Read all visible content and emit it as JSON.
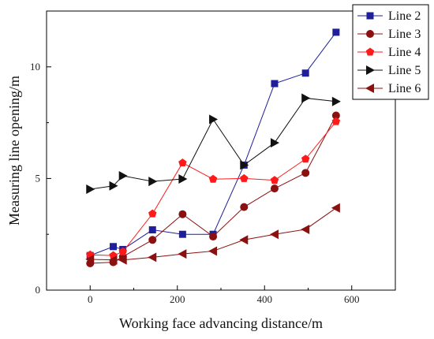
{
  "chart_data": {
    "type": "line",
    "title": "",
    "xlabel": "Working face advancing distance/m",
    "ylabel": "Measuring line opening/m",
    "xlim": [
      -100,
      700
    ],
    "ylim": [
      0,
      12.5
    ],
    "xticks": [
      0,
      200,
      400,
      600
    ],
    "yticks": [
      0,
      5,
      10
    ],
    "grid": false,
    "legend_position": "top-right",
    "series": [
      {
        "name": "Line 2",
        "color": "#1f1f9a",
        "marker": "square",
        "x": [
          0,
          53,
          75,
          143,
          212,
          282,
          353,
          423,
          494,
          564
        ],
        "y": [
          1.55,
          1.95,
          1.82,
          2.7,
          2.5,
          2.5,
          5.6,
          9.25,
          9.72,
          11.55
        ]
      },
      {
        "name": "Line 3",
        "color": "#8b1010",
        "marker": "circle",
        "x": [
          0,
          53,
          75,
          143,
          212,
          282,
          353,
          423,
          494,
          564
        ],
        "y": [
          1.2,
          1.25,
          1.5,
          2.25,
          3.4,
          2.4,
          3.72,
          4.55,
          5.25,
          7.82
        ]
      },
      {
        "name": "Line 4",
        "color": "#ff1a1a",
        "marker": "pentagon",
        "x": [
          0,
          53,
          75,
          143,
          212,
          282,
          353,
          423,
          494,
          564
        ],
        "y": [
          1.58,
          1.55,
          1.72,
          3.42,
          5.7,
          4.97,
          5.0,
          4.92,
          5.87,
          7.55
        ]
      },
      {
        "name": "Line 5",
        "color": "#111111",
        "marker": "triangle-right",
        "x": [
          0,
          53,
          75,
          143,
          212,
          282,
          353,
          423,
          494,
          564
        ],
        "y": [
          4.52,
          4.67,
          5.12,
          4.87,
          4.98,
          7.65,
          5.6,
          6.6,
          8.6,
          8.45
        ]
      },
      {
        "name": "Line 6",
        "color": "#8b1010",
        "marker": "triangle-left",
        "x": [
          0,
          53,
          75,
          143,
          212,
          282,
          353,
          423,
          494,
          564
        ],
        "y": [
          1.38,
          1.35,
          1.35,
          1.47,
          1.62,
          1.75,
          2.25,
          2.5,
          2.72,
          3.68
        ]
      }
    ]
  }
}
